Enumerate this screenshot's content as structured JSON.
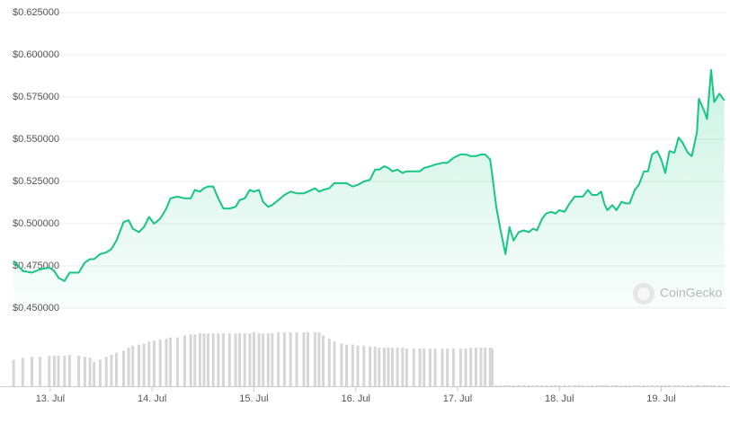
{
  "chart_data": {
    "type": "line",
    "color": "#16c784",
    "xlim": [
      12.63,
      19.64
    ],
    "xticks": [
      {
        "value": 13,
        "label": "13. Jul"
      },
      {
        "value": 14,
        "label": "14. Jul"
      },
      {
        "value": 15,
        "label": "15. Jul"
      },
      {
        "value": 16,
        "label": "16. Jul"
      },
      {
        "value": 17,
        "label": "17. Jul"
      },
      {
        "value": 18,
        "label": "18. Jul"
      },
      {
        "value": 19,
        "label": "19. Jul"
      }
    ],
    "ylim": [
      0.45,
      0.625
    ],
    "yticks": [
      {
        "value": 0.45,
        "label": "$0.450000"
      },
      {
        "value": 0.475,
        "label": "$0.475000"
      },
      {
        "value": 0.5,
        "label": "$0.500000"
      },
      {
        "value": 0.525,
        "label": "$0.525000"
      },
      {
        "value": 0.55,
        "label": "$0.550000"
      },
      {
        "value": 0.575,
        "label": "$0.575000"
      },
      {
        "value": 0.6,
        "label": "$0.600000"
      },
      {
        "value": 0.625,
        "label": "$0.625000"
      }
    ],
    "grid": true,
    "watermark": "CoinGecko",
    "x": [
      12.64,
      12.73,
      12.82,
      12.9,
      12.99,
      13.04,
      13.08,
      13.14,
      13.19,
      13.28,
      13.34,
      13.39,
      13.43,
      13.49,
      13.55,
      13.6,
      13.65,
      13.72,
      13.77,
      13.81,
      13.87,
      13.92,
      13.97,
      14.02,
      14.08,
      14.14,
      14.18,
      14.25,
      14.32,
      14.38,
      14.42,
      14.47,
      14.51,
      14.55,
      14.6,
      14.65,
      14.7,
      14.76,
      14.82,
      14.86,
      14.91,
      14.96,
      15.0,
      15.05,
      15.09,
      15.14,
      15.18,
      15.24,
      15.3,
      15.36,
      15.42,
      15.49,
      15.53,
      15.6,
      15.64,
      15.68,
      15.74,
      15.79,
      15.86,
      15.91,
      15.97,
      16.02,
      16.08,
      16.14,
      16.19,
      16.23,
      16.28,
      16.32,
      16.36,
      16.41,
      16.46,
      16.5,
      16.57,
      16.63,
      16.67,
      16.73,
      16.78,
      16.85,
      16.9,
      16.96,
      17.03,
      17.08,
      17.13,
      17.18,
      17.23,
      17.27,
      17.32,
      17.34,
      17.38,
      17.42,
      17.47,
      17.51,
      17.55,
      17.6,
      17.65,
      17.7,
      17.74,
      17.78,
      17.83,
      17.87,
      17.92,
      17.96,
      18.0,
      18.05,
      18.1,
      18.15,
      18.19,
      18.23,
      18.28,
      18.32,
      18.37,
      18.41,
      18.44,
      18.47,
      18.52,
      18.56,
      18.61,
      18.65,
      18.69,
      18.74,
      18.78,
      18.83,
      18.87,
      18.91,
      18.96,
      19.0,
      19.04,
      19.08,
      19.13,
      19.17,
      19.21,
      19.26,
      19.3,
      19.35,
      19.37,
      19.42,
      19.45,
      19.49,
      19.52,
      19.57,
      19.62
    ],
    "values": [
      0.478,
      0.472,
      0.471,
      0.473,
      0.474,
      0.472,
      0.468,
      0.466,
      0.471,
      0.471,
      0.477,
      0.479,
      0.479,
      0.482,
      0.483,
      0.485,
      0.49,
      0.501,
      0.502,
      0.497,
      0.495,
      0.498,
      0.504,
      0.5,
      0.503,
      0.509,
      0.515,
      0.516,
      0.515,
      0.515,
      0.52,
      0.519,
      0.521,
      0.522,
      0.522,
      0.515,
      0.509,
      0.509,
      0.51,
      0.514,
      0.515,
      0.52,
      0.519,
      0.52,
      0.513,
      0.51,
      0.511,
      0.514,
      0.517,
      0.519,
      0.518,
      0.518,
      0.519,
      0.521,
      0.519,
      0.52,
      0.521,
      0.524,
      0.524,
      0.524,
      0.522,
      0.523,
      0.525,
      0.526,
      0.532,
      0.532,
      0.534,
      0.533,
      0.531,
      0.532,
      0.53,
      0.531,
      0.531,
      0.531,
      0.533,
      0.534,
      0.535,
      0.536,
      0.536,
      0.539,
      0.541,
      0.541,
      0.54,
      0.54,
      0.541,
      0.541,
      0.538,
      0.529,
      0.51,
      0.497,
      0.482,
      0.498,
      0.49,
      0.495,
      0.496,
      0.495,
      0.497,
      0.496,
      0.503,
      0.506,
      0.507,
      0.506,
      0.508,
      0.507,
      0.512,
      0.516,
      0.516,
      0.516,
      0.52,
      0.517,
      0.517,
      0.519,
      0.512,
      0.508,
      0.511,
      0.508,
      0.513,
      0.512,
      0.512,
      0.52,
      0.523,
      0.531,
      0.531,
      0.541,
      0.543,
      0.538,
      0.53,
      0.543,
      0.542,
      0.551,
      0.548,
      0.542,
      0.54,
      0.554,
      0.574,
      0.567,
      0.562,
      0.591,
      0.572,
      0.577,
      0.573
    ],
    "volume": {
      "color": "#d6d6d6",
      "values": [
        26,
        28,
        29,
        29,
        30,
        30,
        30,
        30,
        31,
        30,
        29,
        28,
        24,
        26,
        29,
        31,
        33,
        35,
        38,
        40,
        41,
        42,
        44,
        45,
        46,
        47,
        48,
        48,
        50,
        51,
        51,
        52,
        52,
        52,
        52,
        52,
        52,
        52,
        52,
        52,
        52,
        52,
        53,
        52,
        52,
        52,
        52,
        53,
        53,
        53,
        53,
        53,
        53,
        53,
        53,
        50,
        47,
        44,
        42,
        41,
        41,
        40,
        40,
        39,
        39,
        38,
        38,
        38,
        38,
        38,
        38,
        37,
        37,
        37,
        37,
        37,
        37,
        37,
        37,
        37,
        37,
        37,
        38,
        38,
        38,
        38,
        38,
        37,
        1,
        1,
        1,
        1,
        1,
        1,
        1,
        1,
        1,
        1,
        1,
        1,
        1,
        1,
        1,
        1,
        1,
        1,
        1,
        1,
        1,
        1,
        1,
        1,
        1,
        1,
        1,
        1,
        1,
        1,
        1,
        1,
        1,
        1,
        1,
        1,
        1,
        1,
        1,
        1,
        1,
        1,
        1,
        1,
        1,
        1,
        1,
        1,
        1,
        1,
        1,
        1,
        1
      ]
    }
  }
}
